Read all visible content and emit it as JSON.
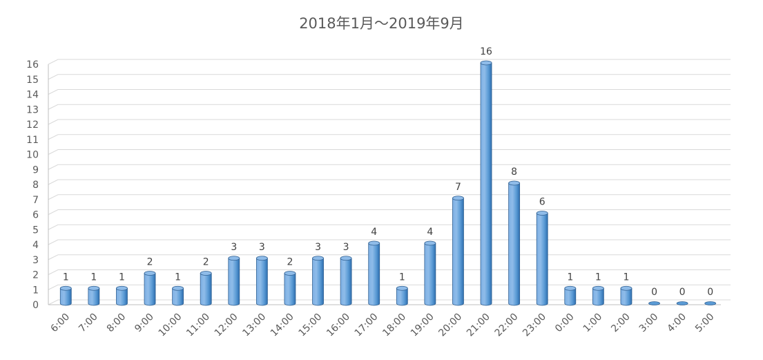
{
  "chart_data": {
    "type": "bar",
    "title": "2018年1月～2019年9月",
    "categories": [
      "6:00",
      "7:00",
      "8:00",
      "9:00",
      "10:00",
      "11:00",
      "12:00",
      "13:00",
      "14:00",
      "15:00",
      "16:00",
      "17:00",
      "18:00",
      "19:00",
      "20:00",
      "21:00",
      "22:00",
      "23:00",
      "0:00",
      "1:00",
      "2:00",
      "3:00",
      "4:00",
      "5:00"
    ],
    "values": [
      1,
      1,
      1,
      2,
      1,
      2,
      3,
      3,
      2,
      3,
      3,
      4,
      1,
      4,
      7,
      16,
      8,
      6,
      1,
      1,
      1,
      0,
      0,
      0
    ],
    "ylim": [
      0,
      16
    ],
    "yticks": [
      0,
      1,
      2,
      3,
      4,
      5,
      6,
      7,
      8,
      9,
      10,
      11,
      12,
      13,
      14,
      15,
      16
    ],
    "grid": true,
    "legend": "none",
    "bar_style": "3d-cylinder",
    "colors": {
      "bar_top": "#8FBCE9",
      "bar_light": "#7EB0E4",
      "bar_mid": "#5B9BD5",
      "bar_dark": "#2E6FB0",
      "bar_outline": "#2F5F91",
      "grid": "#D9D9D9",
      "axis": "#BFBFBF",
      "text": "#595959"
    }
  }
}
